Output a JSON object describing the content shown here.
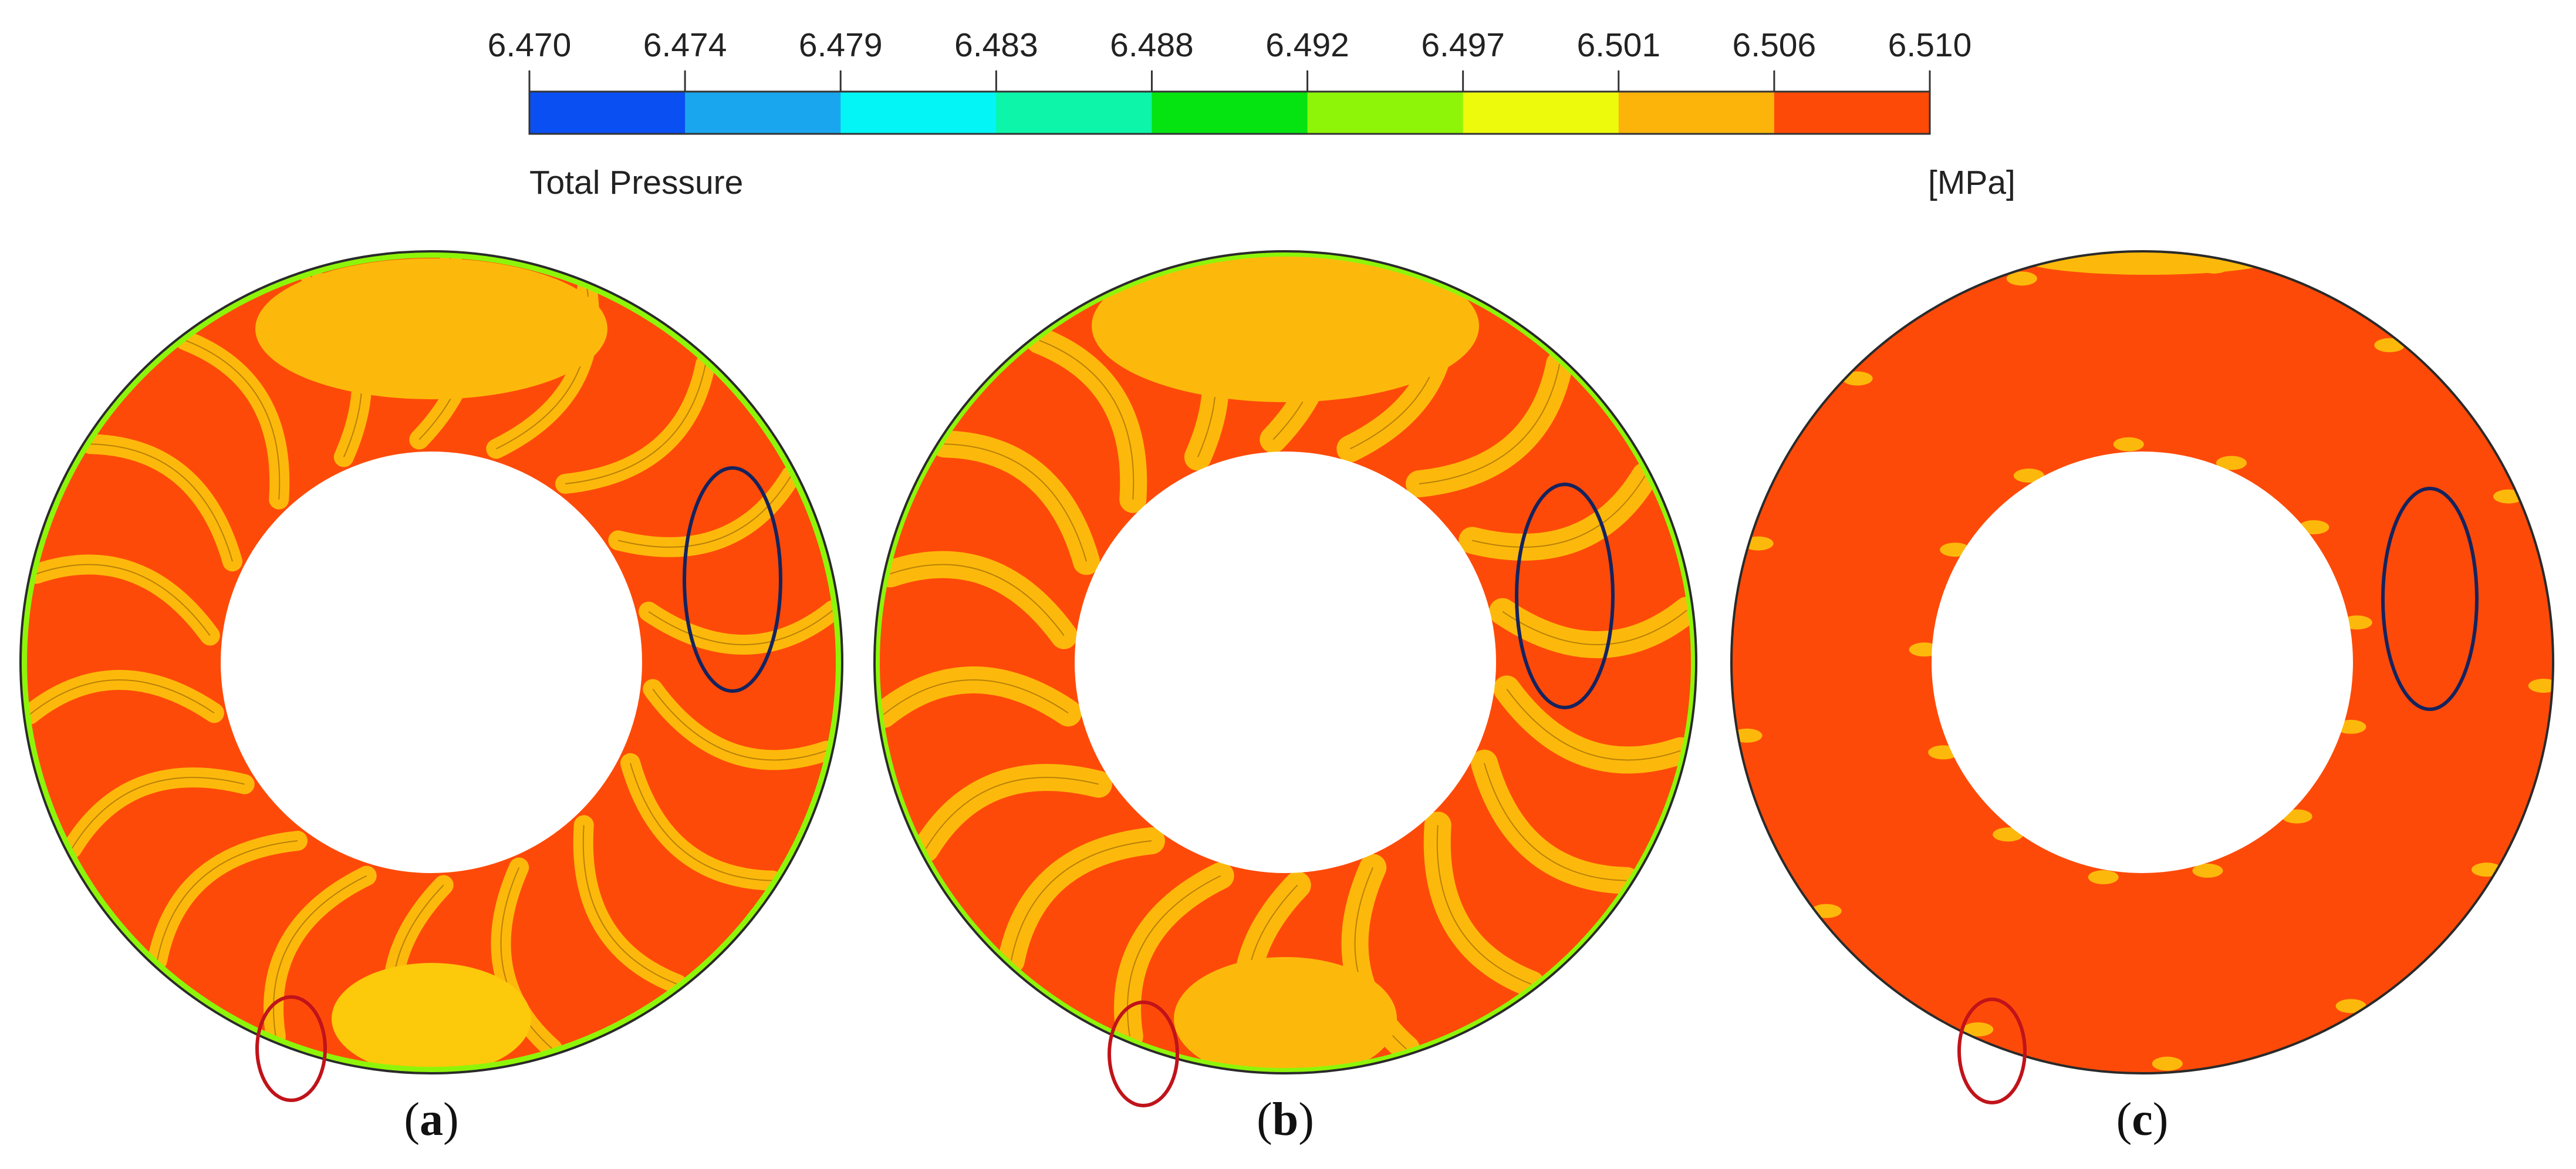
{
  "colorbar": {
    "ticks": [
      "6.470",
      "6.474",
      "6.479",
      "6.483",
      "6.488",
      "6.492",
      "6.497",
      "6.501",
      "6.506",
      "6.510"
    ],
    "colors": [
      "#0a4ff2",
      "#1aa6ee",
      "#04f5f5",
      "#0cf5a8",
      "#05e310",
      "#8ef509",
      "#eefa0c",
      "#fcb40a",
      "#fd4a07"
    ],
    "title": "Total Pressure",
    "unit": "[MPa]"
  },
  "panels": [
    {
      "id": "a",
      "label": "a"
    },
    {
      "id": "b",
      "label": "b"
    },
    {
      "id": "c",
      "label": "c"
    }
  ],
  "colors": {
    "field_high": "#fe4a08",
    "field_mid": "#fdb90b",
    "field_low": "#8ef509",
    "outline": "#2a2a2a",
    "marker_red": "#c0131a",
    "marker_blue": "#15235e"
  }
}
